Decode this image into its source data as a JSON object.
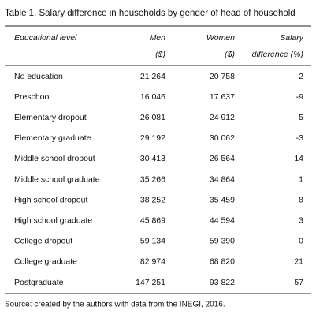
{
  "table": {
    "title": "Table 1. Salary difference in households by gender of head of household",
    "columns": [
      {
        "lines": [
          "Educational level"
        ]
      },
      {
        "lines": [
          "Men",
          "($)"
        ]
      },
      {
        "lines": [
          "Women",
          "($)"
        ]
      },
      {
        "lines": [
          "Salary",
          "difference (%)"
        ]
      }
    ],
    "rows": [
      [
        "No education",
        "21 264",
        "20 758",
        "2"
      ],
      [
        "Preschool",
        "16 046",
        "17 637",
        "-9"
      ],
      [
        "Elementary dropout",
        "26 081",
        "24 912",
        "5"
      ],
      [
        "Elementary graduate",
        "29 192",
        "30 062",
        "-3"
      ],
      [
        "Middle school dropout",
        "30 413",
        "26 564",
        "14"
      ],
      [
        "Middle school graduate",
        "35 266",
        "34 864",
        "1"
      ],
      [
        "High school dropout",
        "38 252",
        "35 459",
        "8"
      ],
      [
        "High school graduate",
        "45 869",
        "44 594",
        "3"
      ],
      [
        "College dropout",
        "59 134",
        "59 390",
        "0"
      ],
      [
        "College graduate",
        "82 974",
        "68 820",
        "21"
      ],
      [
        "Postgraduate",
        "147 251",
        "93 822",
        "57"
      ]
    ],
    "source": "Source: created by the authors with data from the INEGI, 2016."
  }
}
